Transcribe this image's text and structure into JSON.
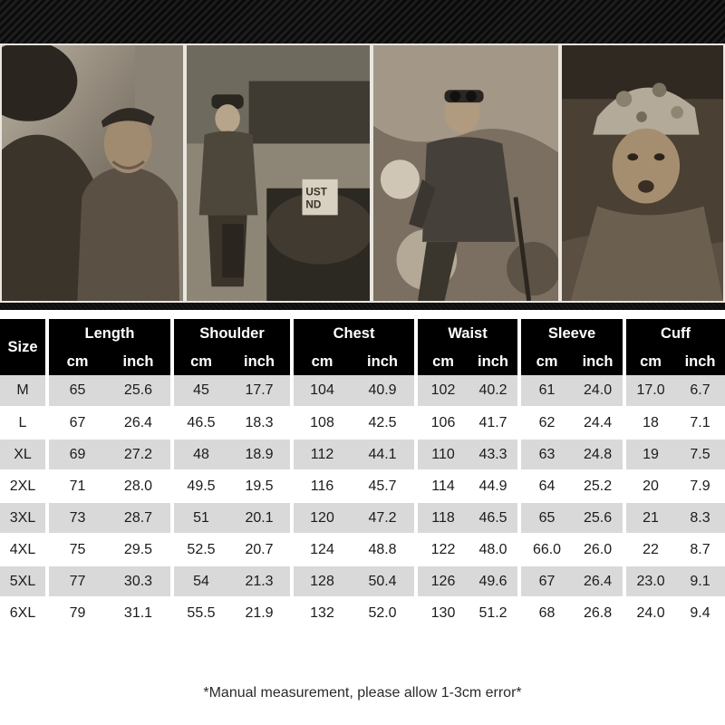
{
  "table": {
    "size_header": "Size",
    "groups": [
      "Length",
      "Shoulder",
      "Chest",
      "Waist",
      "Sleeve",
      "Cuff"
    ],
    "units": [
      "cm",
      "inch",
      "cm",
      "inch",
      "cm",
      "inch",
      "cm",
      "inch",
      "cm",
      "inch",
      "cm",
      "inch"
    ],
    "rows": [
      [
        "M",
        "65",
        "25.6",
        "45",
        "17.7",
        "104",
        "40.9",
        "102",
        "40.2",
        "61",
        "24.0",
        "17.0",
        "6.7"
      ],
      [
        "L",
        "67",
        "26.4",
        "46.5",
        "18.3",
        "108",
        "42.5",
        "106",
        "41.7",
        "62",
        "24.4",
        "18",
        "7.1"
      ],
      [
        "XL",
        "69",
        "27.2",
        "48",
        "18.9",
        "112",
        "44.1",
        "110",
        "43.3",
        "63",
        "24.8",
        "19",
        "7.5"
      ],
      [
        "2XL",
        "71",
        "28.0",
        "49.5",
        "19.5",
        "116",
        "45.7",
        "114",
        "44.9",
        "64",
        "25.2",
        "20",
        "7.9"
      ],
      [
        "3XL",
        "73",
        "28.7",
        "51",
        "20.1",
        "120",
        "47.2",
        "118",
        "46.5",
        "65",
        "25.6",
        "21",
        "8.3"
      ],
      [
        "4XL",
        "75",
        "29.5",
        "52.5",
        "20.7",
        "124",
        "48.8",
        "122",
        "48.0",
        "66.0",
        "26.0",
        "22",
        "8.7"
      ],
      [
        "5XL",
        "77",
        "30.3",
        "54",
        "21.3",
        "128",
        "50.4",
        "126",
        "49.6",
        "67",
        "26.4",
        "23.0",
        "9.1"
      ],
      [
        "6XL",
        "79",
        "31.1",
        "55.5",
        "21.9",
        "132",
        "52.0",
        "130",
        "51.2",
        "68",
        "26.8",
        "24.0",
        "9.4"
      ]
    ]
  },
  "footnote": "*Manual measurement, please allow 1-3cm error*",
  "photo_sign_text": [
    "UST",
    "ND"
  ],
  "colors": {
    "header_bg": "#000000",
    "header_text": "#ffffff",
    "row_shaded": "#d9d9d9",
    "row_plain": "#ffffff",
    "sepia_dark": "#2a241c",
    "sepia_light": "#cfc6b6"
  }
}
